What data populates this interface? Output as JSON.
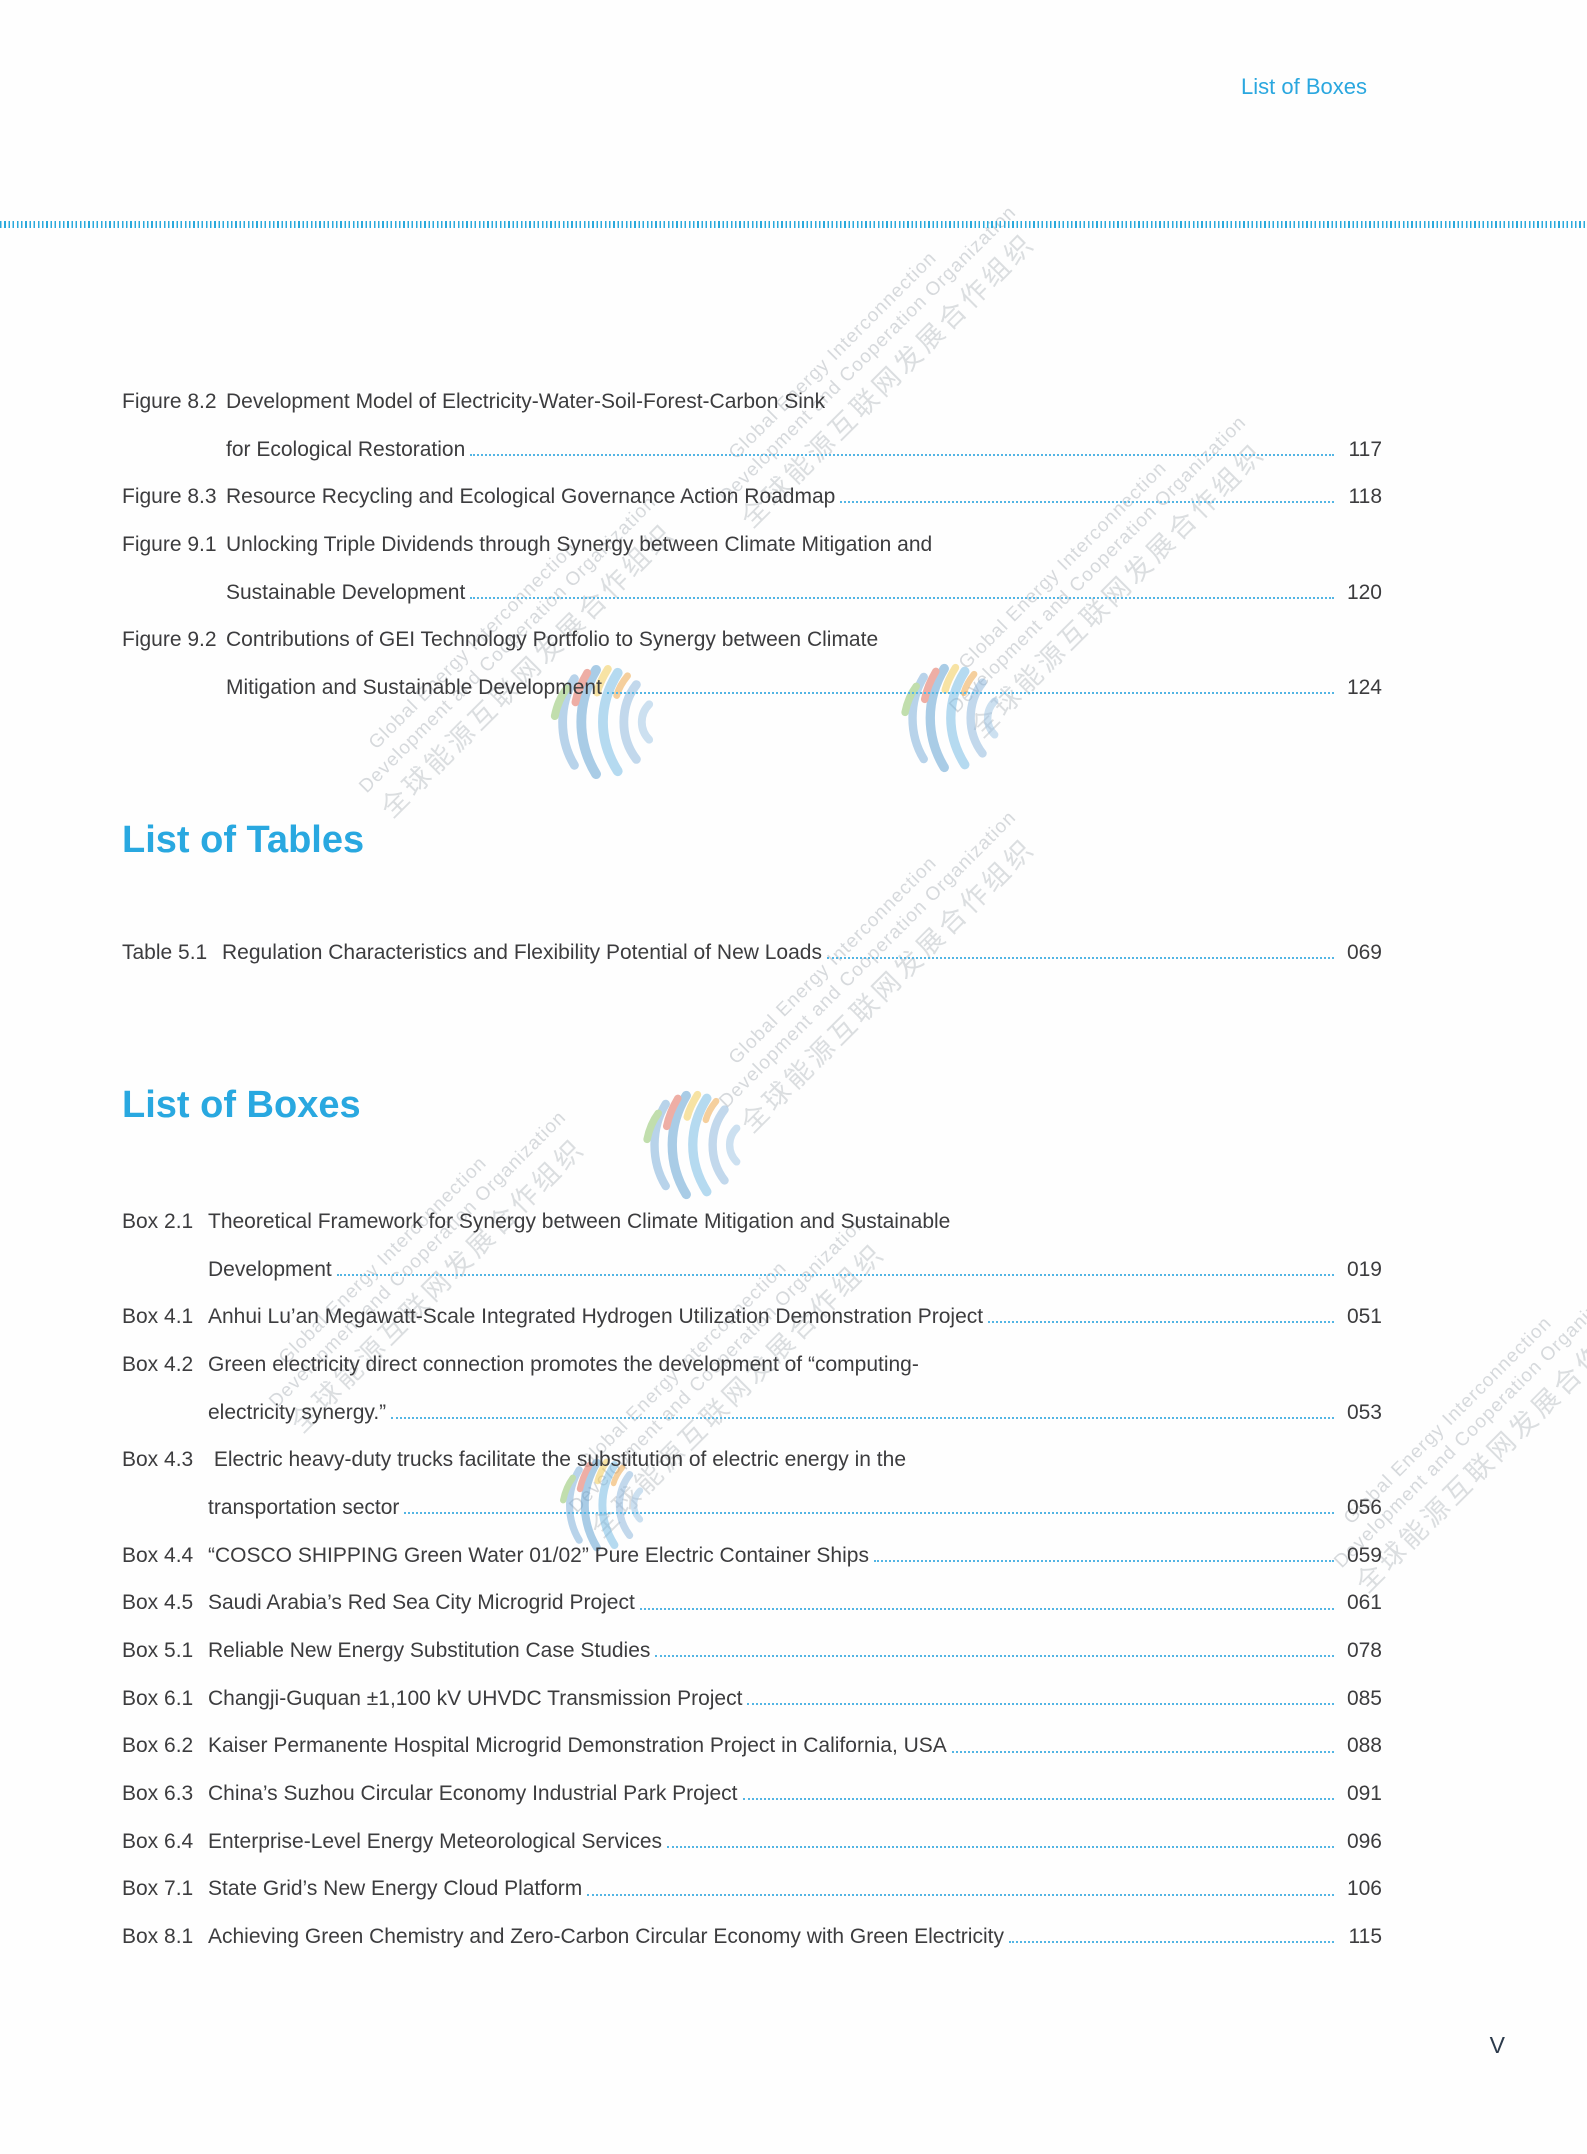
{
  "page": {
    "running_header": "List of Boxes",
    "page_number": "V"
  },
  "colors": {
    "accent": "#29a8e0",
    "leader_dots": "#53b5e4",
    "separator": "#2aa9dc",
    "text": "#3c3c3e"
  },
  "figures": {
    "entries": [
      {
        "label": "Figure 8.2",
        "lines": [
          "Development Model of Electricity-Water-Soil-Forest-Carbon Sink",
          "for Ecological Restoration"
        ],
        "page": "117"
      },
      {
        "label": "Figure 8.3",
        "lines": [
          "Resource Recycling and Ecological Governance Action Roadmap"
        ],
        "page": "118"
      },
      {
        "label": "Figure 9.1",
        "lines": [
          "Unlocking Triple Dividends through Synergy between Climate Mitigation and",
          "Sustainable Development"
        ],
        "page": "120"
      },
      {
        "label": "Figure 9.2",
        "lines": [
          "Contributions of GEI Technology Portfolio to Synergy between Climate",
          "Mitigation and Sustainable Development"
        ],
        "page": "124"
      }
    ]
  },
  "tables": {
    "heading": "List of Tables",
    "entries": [
      {
        "label": "Table 5.1",
        "lines": [
          "Regulation Characteristics and Flexibility Potential of New Loads"
        ],
        "page": "069"
      }
    ]
  },
  "boxes": {
    "heading": "List of Boxes",
    "entries": [
      {
        "label": "Box 2.1",
        "lines": [
          "Theoretical Framework for Synergy between Climate Mitigation and Sustainable",
          "Development"
        ],
        "page": "019"
      },
      {
        "label": "Box 4.1",
        "lines": [
          "Anhui Lu’an Megawatt-Scale Integrated Hydrogen Utilization Demonstration Project"
        ],
        "page": "051"
      },
      {
        "label": "Box 4.2",
        "lines": [
          "Green electricity direct connection promotes the development of “computing-",
          "electricity synergy.”"
        ],
        "page": "053"
      },
      {
        "label": "Box 4.3",
        "lines": [
          " Electric heavy-duty trucks facilitate the substitution of electric energy in the",
          "transportation sector"
        ],
        "page": "056"
      },
      {
        "label": "Box 4.4",
        "lines": [
          "“COSCO SHIPPING Green Water 01/02” Pure Electric Container Ships"
        ],
        "page": "059"
      },
      {
        "label": "Box 4.5",
        "lines": [
          "Saudi Arabia’s Red Sea City Microgrid Project"
        ],
        "page": "061"
      },
      {
        "label": "Box 5.1",
        "lines": [
          "Reliable New Energy Substitution Case Studies"
        ],
        "page": "078"
      },
      {
        "label": "Box 6.1",
        "lines": [
          "Changji-Guquan ±1,100 kV UHVDC Transmission Project"
        ],
        "page": "085"
      },
      {
        "label": "Box 6.2",
        "lines": [
          "Kaiser Permanente Hospital Microgrid Demonstration Project in California, USA"
        ],
        "page": "088"
      },
      {
        "label": "Box 6.3",
        "lines": [
          "China’s Suzhou Circular Economy Industrial Park Project"
        ],
        "page": "091"
      },
      {
        "label": "Box 6.4",
        "lines": [
          "Enterprise-Level Energy Meteorological Services"
        ],
        "page": "096"
      },
      {
        "label": "Box 7.1",
        "lines": [
          "State Grid’s New Energy Cloud Platform"
        ],
        "page": "106"
      },
      {
        "label": "Box 8.1",
        "lines": [
          "Achieving Green Chemistry and Zero-Carbon Circular Economy with Green Electricity"
        ],
        "page": "115"
      }
    ]
  },
  "watermark": {
    "line1": "Global Energy Interconnection",
    "line2": "Development and Cooperation Organization",
    "line3": "全球能源互联网发展合作组织"
  }
}
